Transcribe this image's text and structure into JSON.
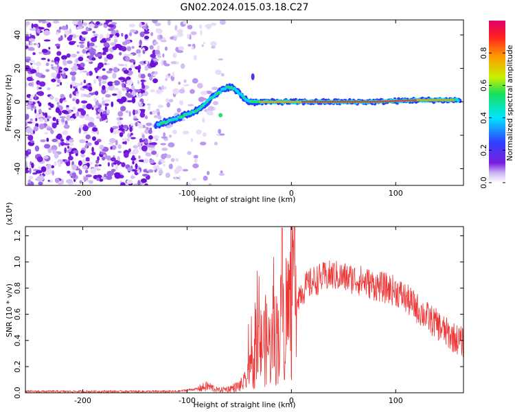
{
  "chart_data": [
    {
      "type": "heatmap",
      "title": "GN02.2024.015.03.18.C27",
      "xlabel": "Height of straight line (km)",
      "ylabel": "Frequency (Hz)",
      "xlim": [
        -255,
        165
      ],
      "ylim": [
        -50,
        49
      ],
      "x_ticks": [
        -200,
        -100,
        0,
        100
      ],
      "y_ticks": [
        -40,
        -20,
        0,
        20,
        40
      ],
      "colorbar": {
        "label": "Normalized spectral amplitude",
        "range": [
          0,
          1
        ],
        "ticks": [
          "0.0",
          "0.2",
          "0.4",
          "0.6",
          "0.8"
        ],
        "colors": [
          "#ffffff",
          "#7b1fe0",
          "#3040ff",
          "#00e5ff",
          "#19e05a",
          "#c8f000",
          "#ff9a00",
          "#ff2020",
          "#e0006a"
        ]
      },
      "ridge": {
        "description_points_x": [
          -130,
          -110,
          -90,
          -75,
          -62,
          -55,
          -45,
          -40,
          -30,
          -20,
          0,
          40,
          80,
          120,
          160
        ],
        "description_points_y": [
          -14,
          -10,
          -5,
          3,
          9,
          8,
          2,
          0,
          0,
          0,
          0,
          0,
          0,
          1,
          1
        ]
      }
    },
    {
      "type": "line",
      "xlabel": "Height of straight line (km)",
      "ylabel": "SNR (10 * v/v)",
      "y_multiplier": "(x10⁴)",
      "xlim": [
        -255,
        165
      ],
      "ylim": [
        0,
        1.27
      ],
      "x_ticks": [
        -200,
        -100,
        0,
        100
      ],
      "y_ticks": [
        "0.0",
        "0.2",
        "0.4",
        "0.6",
        "0.8",
        "1.0",
        "1.2"
      ],
      "series": [
        {
          "color": "#ee3333",
          "x": [
            -255,
            -200,
            -150,
            -110,
            -90,
            -80,
            -70,
            -60,
            -50,
            -45,
            -40,
            -35,
            -30,
            -25,
            -20,
            -10,
            -5,
            0,
            10,
            20,
            30,
            40,
            50,
            60,
            70,
            80,
            90,
            100,
            110,
            120,
            130,
            140,
            150,
            165
          ],
          "y": [
            0.01,
            0.01,
            0.01,
            0.01,
            0.03,
            0.05,
            0.02,
            0.03,
            0.05,
            0.08,
            0.15,
            0.25,
            0.35,
            0.4,
            0.35,
            0.5,
            0.6,
            0.68,
            0.78,
            0.85,
            0.88,
            0.9,
            0.88,
            0.87,
            0.85,
            0.82,
            0.8,
            0.78,
            0.72,
            0.65,
            0.58,
            0.52,
            0.45,
            0.38
          ]
        }
      ]
    }
  ]
}
